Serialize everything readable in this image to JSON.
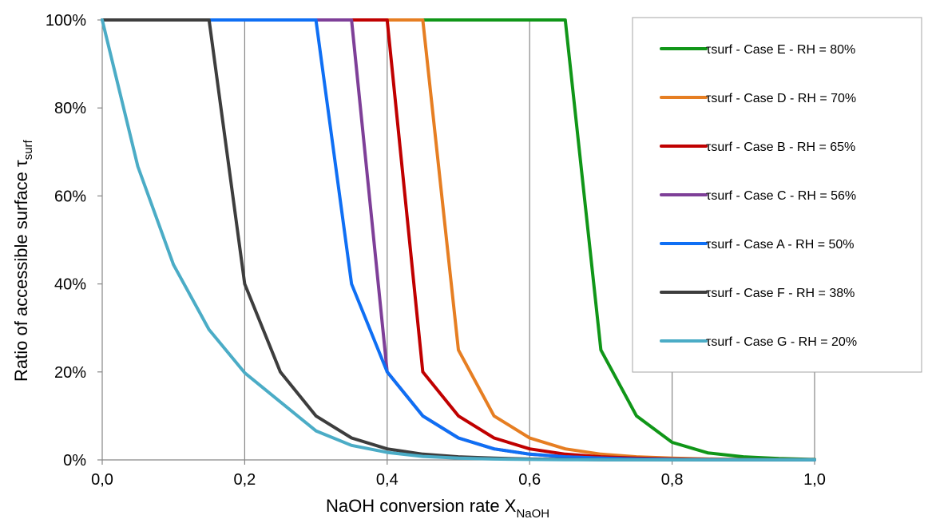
{
  "chart_data": {
    "type": "line",
    "xlabel": {
      "main": "NaOH conversion rate X",
      "sub": "NaOH"
    },
    "ylabel": {
      "main": "Ratio of accessible surface τ",
      "sub": "surf"
    },
    "xlim": [
      0,
      1.0
    ],
    "ylim": [
      0,
      1.0
    ],
    "x_ticks": [
      0,
      0.2,
      0.4,
      0.6,
      0.8,
      1.0
    ],
    "x_tick_labels": [
      "0,0",
      "0,2",
      "0,4",
      "0,6",
      "0,8",
      "1,0"
    ],
    "y_ticks": [
      0,
      0.2,
      0.4,
      0.6,
      0.8,
      1.0
    ],
    "y_tick_labels": [
      "0%",
      "20%",
      "40%",
      "60%",
      "80%",
      "100%"
    ],
    "grid": {
      "vertical": true,
      "horizontal": false
    },
    "legend_position": "top-right",
    "series": [
      {
        "name": "τsurf - Case E - RH = 80%",
        "color": "#109618",
        "x": [
          0,
          0.65,
          0.7,
          0.75,
          0.8,
          0.85,
          0.9,
          0.95,
          1.0
        ],
        "y": [
          1.0,
          1.0,
          0.25,
          0.1,
          0.04,
          0.016,
          0.007,
          0.003,
          0.001
        ]
      },
      {
        "name": "τsurf - Case D - RH = 70%",
        "color": "#E67E22",
        "x": [
          0,
          0.45,
          0.5,
          0.55,
          0.6,
          0.65,
          0.7,
          0.75,
          0.8,
          0.85,
          0.9,
          0.95,
          1.0
        ],
        "y": [
          1.0,
          1.0,
          0.25,
          0.1,
          0.05,
          0.025,
          0.013,
          0.007,
          0.004,
          0.002,
          0.001,
          0.0005,
          0.0003
        ]
      },
      {
        "name": "τsurf - Case B - RH = 65%",
        "color": "#C00000",
        "x": [
          0,
          0.4,
          0.45,
          0.5,
          0.55,
          0.6,
          0.65,
          0.7,
          0.75,
          0.8,
          0.85,
          0.9,
          0.95,
          1.0
        ],
        "y": [
          1.0,
          1.0,
          0.2,
          0.1,
          0.05,
          0.025,
          0.013,
          0.007,
          0.004,
          0.002,
          0.001,
          0.0005,
          0.0003,
          0.0001
        ]
      },
      {
        "name": "τsurf - Case C - RH = 56%",
        "color": "#7E3F98",
        "x": [
          0,
          0.35,
          0.4,
          0.45,
          0.5,
          0.55,
          0.6,
          0.65,
          0.7,
          0.75,
          0.8,
          0.85,
          0.9,
          0.95,
          1.0
        ],
        "y": [
          1.0,
          1.0,
          0.2,
          0.1,
          0.05,
          0.025,
          0.013,
          0.007,
          0.004,
          0.002,
          0.001,
          0.0005,
          0.0003,
          0.0002,
          0.0001
        ]
      },
      {
        "name": "τsurf - Case A - RH = 50%",
        "color": "#0F6FF4",
        "x": [
          0,
          0.3,
          0.35,
          0.4,
          0.45,
          0.5,
          0.55,
          0.6,
          0.65,
          0.7,
          0.75,
          0.8,
          0.85,
          0.9,
          0.95,
          1.0
        ],
        "y": [
          1.0,
          1.0,
          0.4,
          0.2,
          0.1,
          0.05,
          0.025,
          0.013,
          0.007,
          0.004,
          0.002,
          0.001,
          0.0005,
          0.0003,
          0.0002,
          0.0001
        ]
      },
      {
        "name": "τsurf - Case F - RH = 38%",
        "color": "#3D3D3D",
        "x": [
          0,
          0.15,
          0.2,
          0.25,
          0.3,
          0.35,
          0.4,
          0.45,
          0.5,
          0.55,
          0.6,
          0.65,
          0.7,
          0.75,
          0.8,
          0.85,
          0.9,
          0.95,
          1.0
        ],
        "y": [
          1.0,
          1.0,
          0.4,
          0.2,
          0.1,
          0.05,
          0.025,
          0.013,
          0.007,
          0.004,
          0.002,
          0.001,
          0.0005,
          0.0003,
          0.0002,
          0.0001,
          0.0001,
          0.0001,
          0.0001
        ]
      },
      {
        "name": "τsurf - Case G - RH = 20%",
        "color": "#4BACC6",
        "x": [
          0,
          0.05,
          0.1,
          0.15,
          0.2,
          0.25,
          0.3,
          0.35,
          0.4,
          0.45,
          0.5,
          0.55,
          0.6,
          0.65,
          0.7,
          0.75,
          0.8,
          0.85,
          0.9,
          0.95,
          1.0
        ],
        "y": [
          1.0,
          0.667,
          0.444,
          0.296,
          0.198,
          0.132,
          0.066,
          0.033,
          0.017,
          0.008,
          0.004,
          0.002,
          0.001,
          0.0005,
          0.0003,
          0.0002,
          0.0001,
          0.0001,
          0.0001,
          0.0001,
          0.0001
        ]
      }
    ]
  }
}
